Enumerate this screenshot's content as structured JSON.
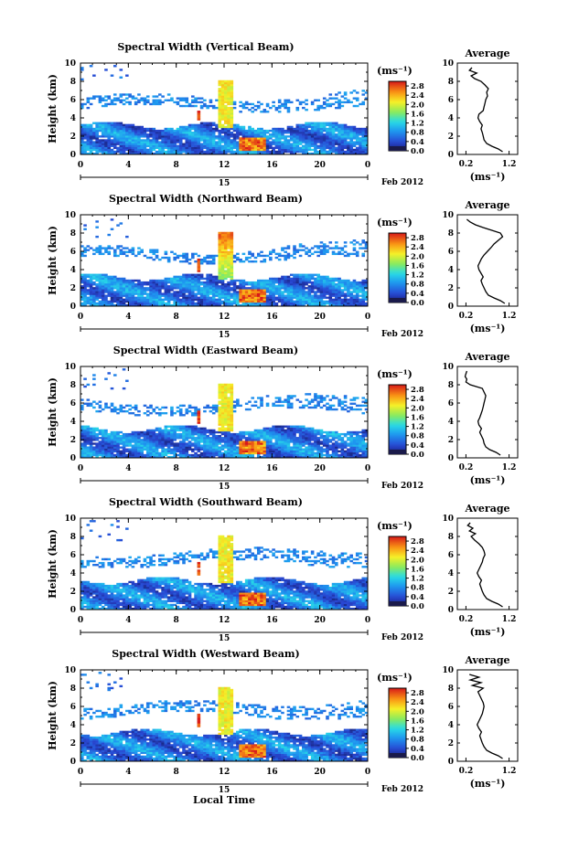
{
  "figure": {
    "x_axis_label": "Local Time",
    "date_label": "Feb 2012"
  },
  "chart_data": [
    {
      "type": "heatmap",
      "title": "Spectral Width (Vertical Beam)",
      "ylabel": "Height (km)",
      "y_ticks": [
        "0",
        "2",
        "4",
        "6",
        "8",
        "10"
      ],
      "ylim": [
        0,
        10
      ],
      "x_ticks": [
        "0",
        "4",
        "8",
        "12",
        "16",
        "20",
        "0"
      ],
      "xlim": [
        0,
        24
      ],
      "day_label": "15",
      "colorbar_unit": "(ms⁻¹)",
      "colorbar_ticks": [
        "0.0",
        "0.4",
        "0.8",
        "1.2",
        "1.6",
        "2.0",
        "2.4",
        "2.8"
      ],
      "colorbar_range": [
        0,
        3.0
      ],
      "average_profile": {
        "title": "Average",
        "xlabel": "(ms⁻¹)",
        "x_ticks": [
          "0.2",
          "1.2"
        ],
        "y_ticks": [
          "0",
          "2",
          "4",
          "6",
          "8",
          "10"
        ],
        "xlim": [
          0.0,
          1.4
        ],
        "ylim": [
          0,
          10
        ],
        "height_km": [
          0.3,
          0.6,
          0.9,
          1.2,
          1.6,
          2.0,
          2.4,
          2.8,
          3.2,
          3.6,
          4.0,
          4.4,
          4.8,
          5.2,
          5.6,
          6.0,
          6.4,
          6.8,
          7.2,
          7.6,
          8.0,
          8.3,
          8.6,
          8.9,
          9.2,
          9.5
        ],
        "width_ms": [
          1.05,
          0.95,
          0.8,
          0.68,
          0.62,
          0.6,
          0.58,
          0.55,
          0.58,
          0.52,
          0.48,
          0.5,
          0.6,
          0.62,
          0.64,
          0.66,
          0.7,
          0.68,
          0.72,
          0.64,
          0.55,
          0.4,
          0.32,
          0.45,
          0.28,
          0.34
        ]
      }
    },
    {
      "type": "heatmap",
      "title": "Spectral Width (Northward Beam)",
      "ylabel": "Height (km)",
      "y_ticks": [
        "0",
        "2",
        "4",
        "6",
        "8",
        "10"
      ],
      "ylim": [
        0,
        10
      ],
      "x_ticks": [
        "0",
        "4",
        "8",
        "12",
        "16",
        "20",
        "0"
      ],
      "xlim": [
        0,
        24
      ],
      "day_label": "15",
      "colorbar_unit": "(ms⁻¹)",
      "colorbar_ticks": [
        "0.0",
        "0.4",
        "0.8",
        "1.2",
        "1.6",
        "2.0",
        "2.4",
        "2.8"
      ],
      "colorbar_range": [
        0,
        3.0
      ],
      "average_profile": {
        "title": "Average",
        "xlabel": "(ms⁻¹)",
        "x_ticks": [
          "0.2",
          "1.2"
        ],
        "y_ticks": [
          "0",
          "2",
          "4",
          "6",
          "8",
          "10"
        ],
        "xlim": [
          0.0,
          1.4
        ],
        "ylim": [
          0,
          10
        ],
        "height_km": [
          0.3,
          0.6,
          0.9,
          1.2,
          1.6,
          2.0,
          2.4,
          2.8,
          3.2,
          3.6,
          4.0,
          4.4,
          4.8,
          5.2,
          5.6,
          6.0,
          6.4,
          6.8,
          7.2,
          7.6,
          8.0,
          8.3,
          8.6,
          8.9,
          9.2,
          9.5
        ],
        "width_ms": [
          1.1,
          1.0,
          0.85,
          0.72,
          0.66,
          0.62,
          0.58,
          0.55,
          0.6,
          0.55,
          0.5,
          0.48,
          0.52,
          0.56,
          0.62,
          0.7,
          0.78,
          0.85,
          0.95,
          1.05,
          1.0,
          0.8,
          0.6,
          0.42,
          0.3,
          0.22
        ]
      }
    },
    {
      "type": "heatmap",
      "title": "Spectral Width (Eastward Beam)",
      "ylabel": "Height (km)",
      "y_ticks": [
        "0",
        "2",
        "4",
        "6",
        "8",
        "10"
      ],
      "ylim": [
        0,
        10
      ],
      "x_ticks": [
        "0",
        "4",
        "8",
        "12",
        "16",
        "20",
        "0"
      ],
      "xlim": [
        0,
        24
      ],
      "day_label": "15",
      "colorbar_unit": "(ms⁻¹)",
      "colorbar_ticks": [
        "0.0",
        "0.4",
        "0.8",
        "1.2",
        "1.6",
        "2.0",
        "2.4",
        "2.8"
      ],
      "colorbar_range": [
        0,
        3.0
      ],
      "average_profile": {
        "title": "Average",
        "xlabel": "(ms⁻¹)",
        "x_ticks": [
          "0.2",
          "1.2"
        ],
        "y_ticks": [
          "0",
          "2",
          "4",
          "6",
          "8",
          "10"
        ],
        "xlim": [
          0.0,
          1.4
        ],
        "ylim": [
          0,
          10
        ],
        "height_km": [
          0.3,
          0.6,
          0.9,
          1.2,
          1.6,
          2.0,
          2.4,
          2.8,
          3.2,
          3.6,
          4.0,
          4.4,
          4.8,
          5.2,
          5.6,
          6.0,
          6.4,
          6.8,
          7.2,
          7.6,
          8.0,
          8.3,
          8.6,
          8.9,
          9.2,
          9.5
        ],
        "width_ms": [
          1.0,
          0.9,
          0.75,
          0.66,
          0.62,
          0.6,
          0.56,
          0.52,
          0.56,
          0.5,
          0.48,
          0.52,
          0.55,
          0.58,
          0.6,
          0.62,
          0.64,
          0.66,
          0.62,
          0.58,
          0.3,
          0.2,
          0.22,
          0.18,
          0.2,
          0.22
        ]
      }
    },
    {
      "type": "heatmap",
      "title": "Spectral Width (Southward Beam)",
      "ylabel": "Height (km)",
      "y_ticks": [
        "0",
        "2",
        "4",
        "6",
        "8",
        "10"
      ],
      "ylim": [
        0,
        10
      ],
      "x_ticks": [
        "0",
        "4",
        "8",
        "12",
        "16",
        "20",
        "0"
      ],
      "xlim": [
        0,
        24
      ],
      "day_label": "15",
      "colorbar_unit": "(ms⁻¹)",
      "colorbar_ticks": [
        "0.0",
        "0.4",
        "0.8",
        "1.2",
        "1.6",
        "2.0",
        "2.4",
        "2.8"
      ],
      "colorbar_range": [
        0,
        3.0
      ],
      "average_profile": {
        "title": "Average",
        "xlabel": "(ms⁻¹)",
        "x_ticks": [
          "0.2",
          "1.2"
        ],
        "y_ticks": [
          "0",
          "2",
          "4",
          "6",
          "8",
          "10"
        ],
        "xlim": [
          0.0,
          1.4
        ],
        "ylim": [
          0,
          10
        ],
        "height_km": [
          0.3,
          0.6,
          0.9,
          1.2,
          1.6,
          2.0,
          2.4,
          2.8,
          3.2,
          3.6,
          4.0,
          4.4,
          4.8,
          5.2,
          5.6,
          6.0,
          6.4,
          6.8,
          7.2,
          7.6,
          8.0,
          8.3,
          8.6,
          8.9,
          9.2,
          9.5
        ],
        "width_ms": [
          1.05,
          0.95,
          0.8,
          0.68,
          0.62,
          0.58,
          0.55,
          0.52,
          0.56,
          0.5,
          0.46,
          0.5,
          0.54,
          0.58,
          0.6,
          0.64,
          0.62,
          0.58,
          0.5,
          0.4,
          0.32,
          0.42,
          0.28,
          0.36,
          0.24,
          0.3
        ]
      }
    },
    {
      "type": "heatmap",
      "title": "Spectral Width (Westward Beam)",
      "ylabel": "Height (km)",
      "y_ticks": [
        "0",
        "2",
        "4",
        "6",
        "8",
        "10"
      ],
      "ylim": [
        0,
        10
      ],
      "x_ticks": [
        "0",
        "4",
        "8",
        "12",
        "16",
        "20",
        "0"
      ],
      "xlim": [
        0,
        24
      ],
      "day_label": "15",
      "colorbar_unit": "(ms⁻¹)",
      "colorbar_ticks": [
        "0.0",
        "0.4",
        "0.8",
        "1.2",
        "1.6",
        "2.0",
        "2.4",
        "2.8"
      ],
      "colorbar_range": [
        0,
        3.0
      ],
      "average_profile": {
        "title": "Average",
        "xlabel": "(ms⁻¹)",
        "x_ticks": [
          "0.2",
          "1.2"
        ],
        "y_ticks": [
          "0",
          "2",
          "4",
          "6",
          "8",
          "10"
        ],
        "xlim": [
          0.0,
          1.4
        ],
        "ylim": [
          0,
          10
        ],
        "height_km": [
          0.3,
          0.6,
          0.9,
          1.2,
          1.6,
          2.0,
          2.4,
          2.8,
          3.2,
          3.6,
          4.0,
          4.4,
          4.8,
          5.2,
          5.6,
          6.0,
          6.4,
          6.8,
          7.2,
          7.6,
          8.0,
          8.3,
          8.6,
          8.9,
          9.2,
          9.5
        ],
        "width_ms": [
          1.05,
          0.95,
          0.8,
          0.68,
          0.62,
          0.58,
          0.55,
          0.52,
          0.56,
          0.5,
          0.46,
          0.5,
          0.54,
          0.58,
          0.6,
          0.62,
          0.6,
          0.56,
          0.52,
          0.48,
          0.6,
          0.35,
          0.55,
          0.3,
          0.5,
          0.28
        ]
      }
    }
  ]
}
